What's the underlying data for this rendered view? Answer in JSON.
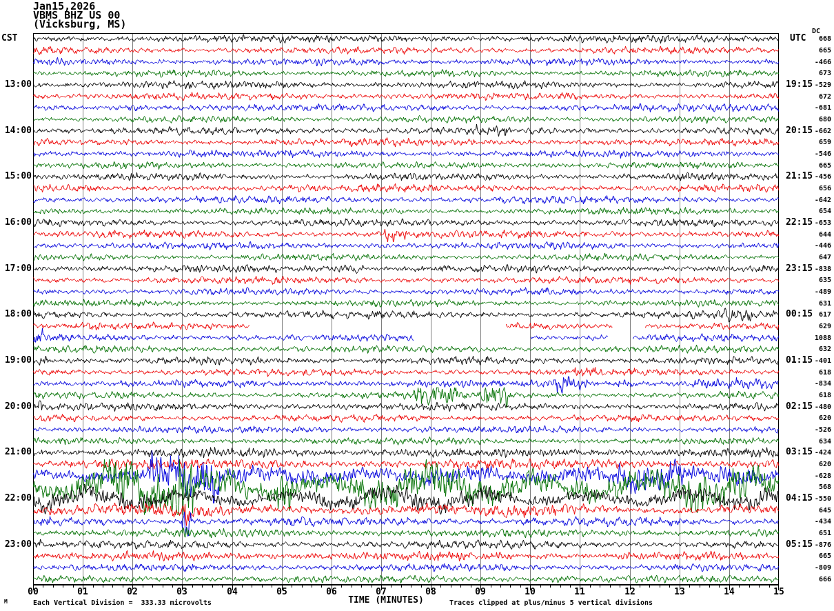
{
  "title": {
    "date": "Jan15,2026",
    "station": "VBMS BHZ US 00",
    "location": "(Vicksburg, MS)"
  },
  "left_axis": {
    "header": "CST"
  },
  "right_axis": {
    "header": "UTC",
    "dc_header": "DC"
  },
  "x_axis": {
    "title": "TIME (MINUTES)",
    "ticks": [
      "00",
      "01",
      "02",
      "03",
      "04",
      "05",
      "06",
      "07",
      "08",
      "09",
      "10",
      "11",
      "12",
      "13",
      "14",
      "15"
    ],
    "minutes": 15,
    "minor_per_major": 5
  },
  "footer": {
    "left": "Each Vertical Division =  333.33 microvolts",
    "right": "Traces clipped at plus/minus 5 vertical divisions",
    "mark": "M"
  },
  "chart_data": {
    "type": "line",
    "subtype": "helicorder-seismogram",
    "x_range_minutes": [
      0,
      15
    ],
    "rows_count": 48,
    "clip_divisions": 5,
    "microvolts_per_division": "333.33",
    "grid_color": "#7e7e7e",
    "border_color": "#000000",
    "colors": {
      "k": "#000000",
      "r": "#ee0000",
      "b": "#0000dd",
      "g": "#007000"
    },
    "rows": [
      {
        "c": "k",
        "dc": "668",
        "a": 3.4
      },
      {
        "c": "r",
        "dc": "665",
        "a": 3.2
      },
      {
        "c": "b",
        "dc": "-466",
        "a": 3.2
      },
      {
        "c": "g",
        "dc": "673",
        "a": 3.0
      },
      {
        "c": "k",
        "dc": "-529",
        "a": 3.3,
        "cst": "13:00",
        "utc": "19:15"
      },
      {
        "c": "r",
        "dc": "672",
        "a": 3.3
      },
      {
        "c": "b",
        "dc": "-681",
        "a": 3.3,
        "ev": [
          [
            1.8,
            2.3,
            5
          ]
        ]
      },
      {
        "c": "g",
        "dc": "680",
        "a": 3.0
      },
      {
        "c": "k",
        "dc": "-662",
        "a": 3.4,
        "cst": "14:00",
        "utc": "20:15",
        "ev": [
          [
            8.8,
            9.6,
            5
          ]
        ]
      },
      {
        "c": "r",
        "dc": "659",
        "a": 3.4
      },
      {
        "c": "b",
        "dc": "-546",
        "a": 3.2
      },
      {
        "c": "g",
        "dc": "665",
        "a": 3.0
      },
      {
        "c": "k",
        "dc": "-456",
        "a": 3.2,
        "cst": "15:00",
        "utc": "21:15",
        "ev": [
          [
            0,
            0.15,
            6
          ]
        ]
      },
      {
        "c": "r",
        "dc": "656",
        "a": 3.3
      },
      {
        "c": "b",
        "dc": "-642",
        "a": 3.4
      },
      {
        "c": "g",
        "dc": "654",
        "a": 3.1
      },
      {
        "c": "k",
        "dc": "-653",
        "a": 3.3,
        "cst": "16:00",
        "utc": "22:15"
      },
      {
        "c": "r",
        "dc": "644",
        "a": 3.4,
        "ev": [
          [
            7.0,
            7.55,
            9
          ]
        ]
      },
      {
        "c": "b",
        "dc": "-446",
        "a": 3.3
      },
      {
        "c": "g",
        "dc": "647",
        "a": 3.0
      },
      {
        "c": "k",
        "dc": "-838",
        "a": 3.3,
        "cst": "17:00",
        "utc": "23:15",
        "ev": [
          [
            6.0,
            6.7,
            6
          ]
        ]
      },
      {
        "c": "r",
        "dc": "635",
        "a": 3.2
      },
      {
        "c": "b",
        "dc": "-489",
        "a": 3.1
      },
      {
        "c": "g",
        "dc": "631",
        "a": 3.0
      },
      {
        "c": "k",
        "dc": "617",
        "a": 3.4,
        "cst": "18:00",
        "utc": "00:15",
        "ev": [
          [
            13.8,
            14.6,
            6
          ]
        ]
      },
      {
        "c": "r",
        "dc": "629",
        "a": 3.3,
        "gaps": [
          [
            4.35,
            9.5
          ],
          [
            11.65,
            12.3
          ]
        ]
      },
      {
        "c": "b",
        "dc": "1088",
        "a": 3.2,
        "gaps": [
          [
            7.65,
            10.0
          ],
          [
            11.55,
            12.05
          ]
        ],
        "ev": [
          [
            0,
            0.25,
            7
          ]
        ]
      },
      {
        "c": "g",
        "dc": "632",
        "a": 3.2
      },
      {
        "c": "k",
        "dc": "-401",
        "a": 3.4,
        "cst": "19:00",
        "utc": "01:15",
        "ev": [
          [
            0,
            0.3,
            7
          ]
        ]
      },
      {
        "c": "r",
        "dc": "618",
        "a": 3.3,
        "ev": [
          [
            10.8,
            11.35,
            5
          ]
        ]
      },
      {
        "c": "b",
        "dc": "-834",
        "a": 3.4,
        "ev": [
          [
            10.45,
            11.15,
            10
          ],
          [
            11.7,
            12.1,
            7
          ],
          [
            13.2,
            15,
            5
          ]
        ]
      },
      {
        "c": "g",
        "dc": "618",
        "a": 3.2,
        "ev": [
          [
            7.65,
            8.55,
            9
          ],
          [
            9.0,
            9.6,
            11
          ]
        ]
      },
      {
        "c": "k",
        "dc": "-480",
        "a": 3.4,
        "cst": "20:00",
        "utc": "02:15",
        "ev": [
          [
            0,
            0.3,
            6
          ]
        ]
      },
      {
        "c": "r",
        "dc": "620",
        "a": 3.2
      },
      {
        "c": "b",
        "dc": "-526",
        "a": 3.1
      },
      {
        "c": "g",
        "dc": "634",
        "a": 3.1
      },
      {
        "c": "k",
        "dc": "-424",
        "a": 4.2,
        "cst": "21:00",
        "utc": "03:15"
      },
      {
        "c": "r",
        "dc": "620",
        "a": 4.6
      },
      {
        "c": "b",
        "dc": "-628",
        "a": 7.0,
        "slow": 0.35,
        "ev": [
          [
            2.3,
            3.8,
            22
          ],
          [
            7.8,
            9.4,
            12
          ],
          [
            11.7,
            13.2,
            12
          ],
          [
            13.7,
            15,
            10
          ]
        ]
      },
      {
        "c": "g",
        "dc": "568",
        "a": 13.0,
        "slow": 0.55,
        "ev": [
          [
            1.0,
            2.6,
            18
          ],
          [
            2.85,
            3.25,
            34
          ],
          [
            4.85,
            5.25,
            30
          ],
          [
            6.0,
            8.0,
            16
          ],
          [
            9.5,
            11.5,
            16
          ],
          [
            13.0,
            14.6,
            15
          ]
        ]
      },
      {
        "c": "k",
        "dc": "-550",
        "a": 8.0,
        "slow": 0.6,
        "cst": "22:00",
        "utc": "04:15"
      },
      {
        "c": "r",
        "dc": "645",
        "a": 5.0,
        "slow": 0.3,
        "ev": [
          [
            2.95,
            3.2,
            12
          ]
        ]
      },
      {
        "c": "b",
        "dc": "-434",
        "a": 4.0,
        "ev": [
          [
            2.95,
            3.2,
            24
          ]
        ]
      },
      {
        "c": "g",
        "dc": "651",
        "a": 3.6,
        "ev": [
          [
            2.95,
            3.2,
            10
          ]
        ]
      },
      {
        "c": "k",
        "dc": "-876",
        "a": 3.6,
        "cst": "23:00",
        "utc": "05:15",
        "ev": [
          [
            0,
            0.2,
            7
          ]
        ]
      },
      {
        "c": "r",
        "dc": "665",
        "a": 4.0
      },
      {
        "c": "b",
        "dc": "-809",
        "a": 3.3
      },
      {
        "c": "g",
        "dc": "666",
        "a": 3.3,
        "ev": [
          [
            10.3,
            10.9,
            5
          ]
        ]
      }
    ]
  }
}
